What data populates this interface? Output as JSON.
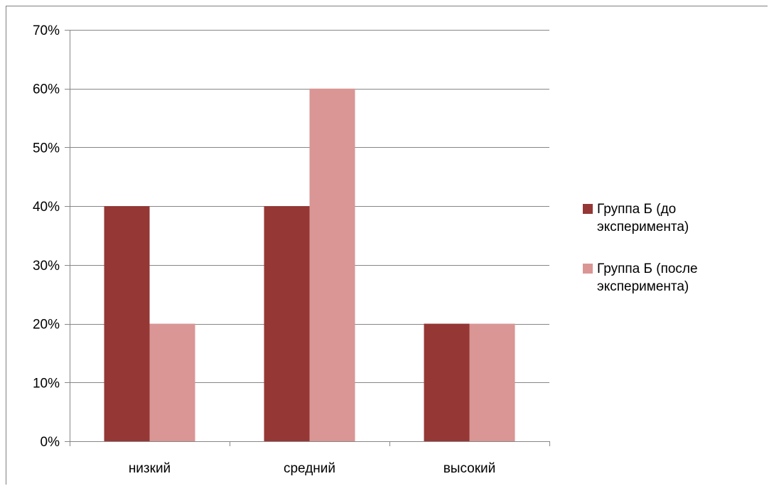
{
  "chart_data": {
    "type": "bar",
    "categories": [
      "низкий",
      "средний",
      "высокий"
    ],
    "series": [
      {
        "name": "Группа Б (до эксперимента)",
        "values": [
          40,
          40,
          20
        ],
        "color": "#953735"
      },
      {
        "name": "Группа Б (после эксперимента)",
        "values": [
          20,
          60,
          20
        ],
        "color": "#d99694"
      }
    ],
    "ylim": [
      0,
      70
    ],
    "yticks": [
      0,
      10,
      20,
      30,
      40,
      50,
      60,
      70
    ],
    "ytick_labels": [
      "0%",
      "10%",
      "20%",
      "30%",
      "40%",
      "50%",
      "60%",
      "70%"
    ],
    "grid": true,
    "gridline_color": "#868686",
    "legend": {
      "placement": "right",
      "entries": [
        {
          "lines": [
            "Группа Б (до",
            "эксперимента)"
          ],
          "color": "#953735"
        },
        {
          "lines": [
            "Группа Б (после",
            "эксперимента)"
          ],
          "color": "#d99694"
        }
      ]
    },
    "title": "",
    "xlabel": "",
    "ylabel": ""
  }
}
